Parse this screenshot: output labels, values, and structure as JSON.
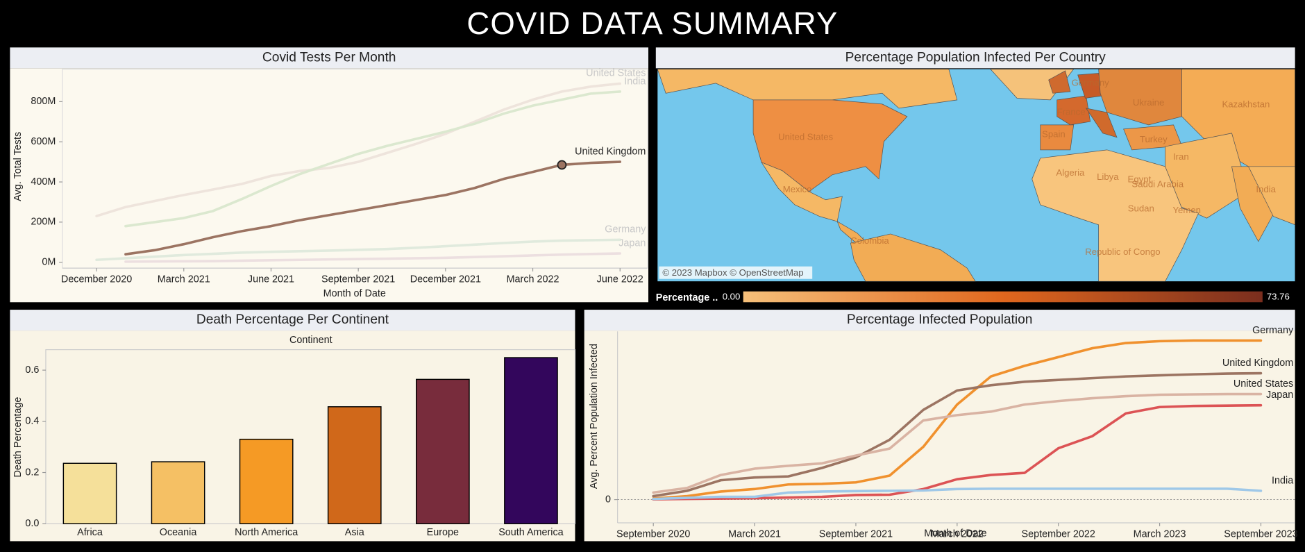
{
  "header": {
    "title": "COVID DATA SUMMARY"
  },
  "chart_data": [
    {
      "type": "line",
      "title": "Covid Tests Per Month",
      "x_label": "Month of Date",
      "y_label": "Avg. Total Tests",
      "x": [
        "2020-12",
        "2021-01",
        "2021-02",
        "2021-03",
        "2021-04",
        "2021-05",
        "2021-06",
        "2021-07",
        "2021-08",
        "2021-09",
        "2021-10",
        "2021-11",
        "2021-12",
        "2022-01",
        "2022-02",
        "2022-03",
        "2022-04",
        "2022-05",
        "2022-06"
      ],
      "xticks": [
        {
          "value": "2020-12",
          "label": "December 2020"
        },
        {
          "value": "2021-03",
          "label": "March 2021"
        },
        {
          "value": "2021-06",
          "label": "June 2021"
        },
        {
          "value": "2021-09",
          "label": "September 2021"
        },
        {
          "value": "2021-12",
          "label": "December 2021"
        },
        {
          "value": "2022-03",
          "label": "March 2022"
        },
        {
          "value": "2022-06",
          "label": "June 2022"
        }
      ],
      "ylim": [
        -29,
        962
      ],
      "yticks": [
        {
          "value": 0,
          "label": "0M"
        },
        {
          "value": 200,
          "label": "200M"
        },
        {
          "value": 400,
          "label": "400M"
        },
        {
          "value": 600,
          "label": "600M"
        },
        {
          "value": 800,
          "label": "800M"
        }
      ],
      "series": [
        {
          "name": "United States",
          "color": "#eee4dc",
          "values": [
            230,
            275,
            305,
            335,
            362,
            390,
            430,
            455,
            470,
            500,
            545,
            590,
            640,
            700,
            760,
            810,
            850,
            875,
            890
          ]
        },
        {
          "name": "India",
          "color": "#dbe8cf",
          "values": [
            null,
            180,
            200,
            220,
            255,
            315,
            380,
            440,
            490,
            540,
            580,
            615,
            650,
            690,
            740,
            780,
            810,
            840,
            850
          ]
        },
        {
          "name": "United Kingdom",
          "color": "#9c7462",
          "marker_index": 16,
          "values": [
            null,
            40,
            60,
            90,
            125,
            155,
            180,
            210,
            235,
            260,
            285,
            310,
            335,
            370,
            415,
            450,
            485,
            495,
            500
          ]
        },
        {
          "name": "Germany",
          "color": "#e0eadd",
          "values": [
            12,
            20,
            28,
            36,
            42,
            48,
            52,
            55,
            58,
            62,
            66,
            72,
            80,
            88,
            96,
            103,
            108,
            110,
            112
          ]
        },
        {
          "name": "Japan",
          "color": "#ecdfe0",
          "values": [
            null,
            3,
            4,
            5,
            6,
            8,
            10,
            12,
            14,
            16,
            18,
            20,
            22,
            26,
            30,
            34,
            38,
            41,
            44
          ]
        }
      ]
    },
    {
      "type": "map",
      "title": "Percentage Population Infected Per Country",
      "legend": {
        "title": "Percentage ..",
        "min": {
          "value": 0,
          "label": "0.00"
        },
        "max": 73.76
      },
      "labels": [
        "United States",
        "Mexico",
        "Colombia",
        "Germany",
        "France",
        "Spain",
        "Ukraine",
        "Kazakhstan",
        "Turkey",
        "Iran",
        "Algeria",
        "Libya",
        "Egypt",
        "Saudi Arabia",
        "Sudan",
        "India",
        "Yemen",
        "Republic of Congo"
      ],
      "attribution": "© 2023 Mapbox © OpenStreetMap"
    },
    {
      "type": "bar",
      "title": "Death Percentage Per Continent",
      "header": "Continent",
      "y_label": "Death Percentage",
      "categories": [
        "Africa",
        "Oceania",
        "North America",
        "Asia",
        "Europe",
        "South America"
      ],
      "values": [
        0.236,
        0.242,
        0.33,
        0.457,
        0.564,
        0.649
      ],
      "colors": [
        "#f5e09a",
        "#f5c064",
        "#f59a25",
        "#d0681a",
        "#782c3c",
        "#33065c"
      ],
      "ylim": [
        0,
        0.68
      ],
      "yticks": [
        {
          "value": 0,
          "label": "0.0"
        },
        0.2,
        0.4,
        0.6
      ]
    },
    {
      "type": "line",
      "title": "Percentage Infected Population",
      "x_label": "Month of Date",
      "y_label": "Avg. Percent Population Infected",
      "x": [
        "2020-09",
        "2020-11",
        "2021-01",
        "2021-03",
        "2021-05",
        "2021-07",
        "2021-09",
        "2021-11",
        "2022-01",
        "2022-03",
        "2022-05",
        "2022-07",
        "2022-09",
        "2022-11",
        "2023-01",
        "2023-03",
        "2023-05",
        "2023-07",
        "2023-09"
      ],
      "xticks": [
        {
          "value": "2020-09",
          "label": "September 2020"
        },
        {
          "value": "2021-03",
          "label": "March 2021"
        },
        {
          "value": "2021-09",
          "label": "September 2021"
        },
        {
          "value": "2022-03",
          "label": "March 2022"
        },
        {
          "value": "2022-09",
          "label": "September 2022"
        },
        {
          "value": "2023-03",
          "label": "March 2023"
        },
        {
          "value": "2023-09",
          "label": "September 2023"
        }
      ],
      "ylim": [
        -6.6,
        47.8
      ],
      "yticks": [
        0
      ],
      "grid": true,
      "series": [
        {
          "name": "Germany",
          "color": "#f0912e",
          "values": [
            0.3,
            1.0,
            2.3,
            3.0,
            4.3,
            4.5,
            4.9,
            6.8,
            15,
            27,
            35,
            38,
            40.5,
            43,
            44.5,
            45,
            45.2,
            45.2,
            45.2
          ]
        },
        {
          "name": "United Kingdom",
          "color": "#9c7462",
          "values": [
            1,
            2.5,
            5.5,
            6.3,
            6.6,
            9,
            12,
            17,
            25.5,
            31,
            32.5,
            33.5,
            34,
            34.5,
            35,
            35.3,
            35.6,
            35.8,
            35.9
          ]
        },
        {
          "name": "United States",
          "color": "#d9b3a3",
          "values": [
            2,
            3.3,
            7,
            8.8,
            9.6,
            10.3,
            12.5,
            14.5,
            22.5,
            24,
            25,
            27,
            28,
            28.8,
            29.4,
            29.8,
            29.9,
            30,
            30
          ]
        },
        {
          "name": "Japan",
          "color": "#dc5355",
          "values": [
            0.1,
            0.2,
            0.3,
            0.4,
            0.6,
            0.8,
            1.3,
            1.4,
            3,
            5.8,
            7,
            7.6,
            14.6,
            18,
            24.5,
            26.3,
            26.6,
            26.7,
            26.8
          ]
        },
        {
          "name": "India",
          "color": "#9fc8e8",
          "values": [
            0.2,
            0.5,
            0.8,
            0.8,
            2,
            2.3,
            2.4,
            2.5,
            2.6,
            3,
            3.1,
            3.1,
            3.1,
            3.1,
            3.1,
            3.1,
            3.1,
            3.1,
            2.5
          ]
        }
      ]
    }
  ]
}
